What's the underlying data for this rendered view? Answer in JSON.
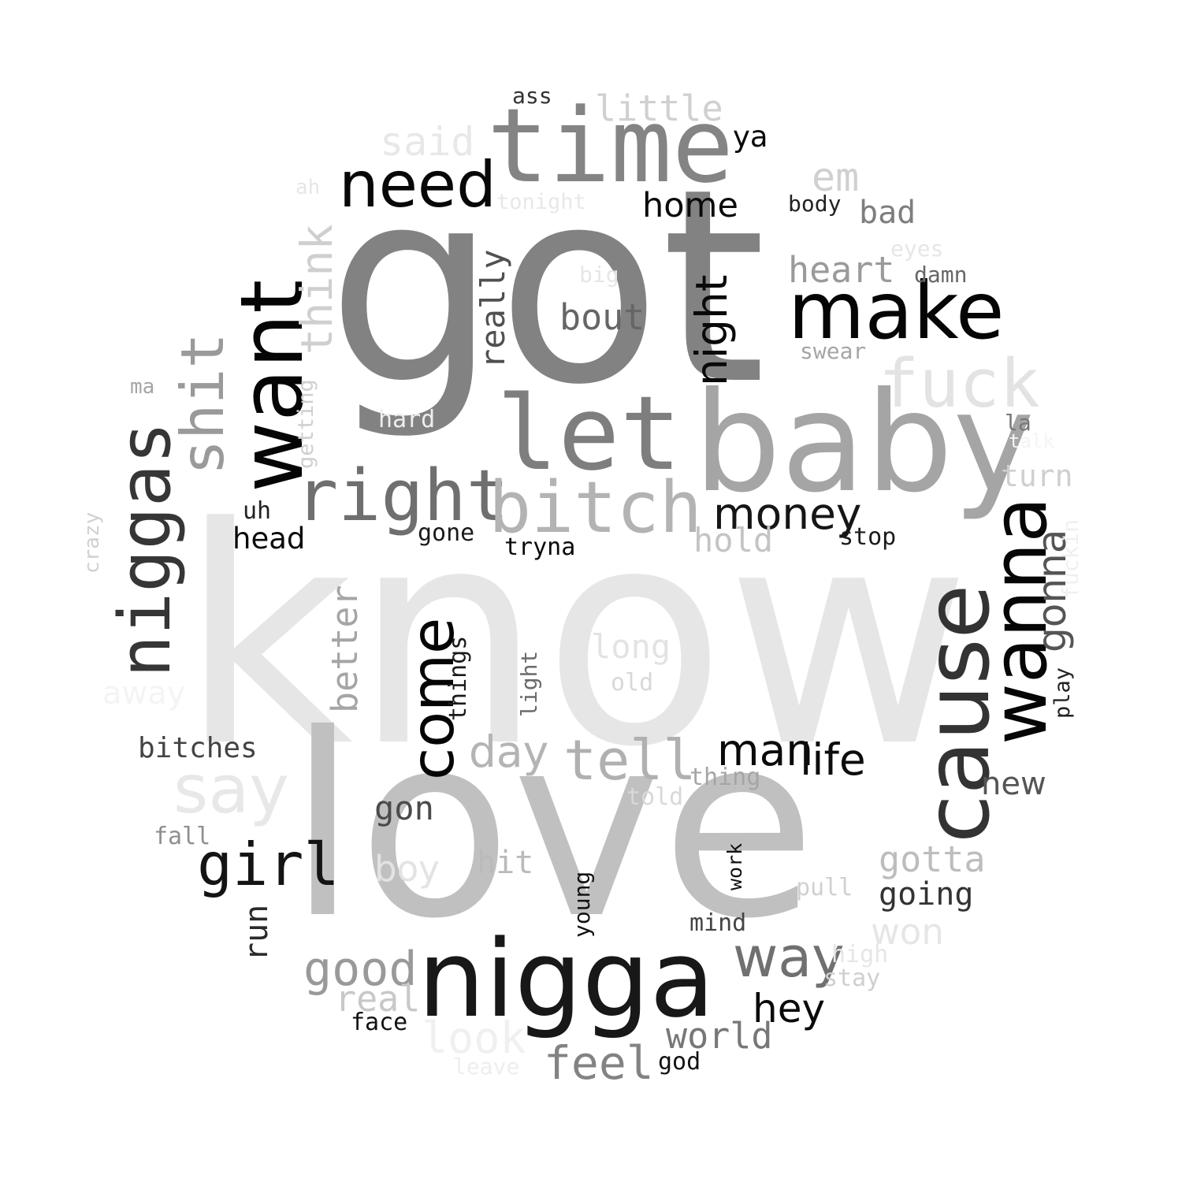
{
  "words": [
    {
      "text": "know",
      "color": "#e6e6e6"
    },
    {
      "text": "got",
      "color": "#828282"
    },
    {
      "text": "love",
      "color": "#c0c0c0"
    },
    {
      "text": "baby",
      "color": "#a5a5a5"
    },
    {
      "text": "nigga",
      "color": "#181818"
    },
    {
      "text": "time",
      "color": "#848484"
    },
    {
      "text": "cause",
      "color": "#333333"
    },
    {
      "text": "want",
      "color": "#050505"
    },
    {
      "text": "let",
      "color": "#7e7e7e"
    },
    {
      "text": "make",
      "color": "#050505"
    },
    {
      "text": "wanna",
      "color": "#060606"
    },
    {
      "text": "right",
      "color": "#6f6f6f"
    },
    {
      "text": "bitch",
      "color": "#b3b3b3"
    },
    {
      "text": "niggas",
      "color": "#363636"
    },
    {
      "text": "need",
      "color": "#080808"
    },
    {
      "text": "fuck",
      "color": "#e3e3e3"
    },
    {
      "text": "say",
      "color": "#e8e8e8"
    },
    {
      "text": "shit",
      "color": "#9a9a9a"
    },
    {
      "text": "come",
      "color": "#050505"
    },
    {
      "text": "girl",
      "color": "#141414"
    },
    {
      "text": "tell",
      "color": "#b0b0b0"
    },
    {
      "text": "way",
      "color": "#707070"
    },
    {
      "text": "money",
      "color": "#161616"
    },
    {
      "text": "good",
      "color": "#999999"
    },
    {
      "text": "feel",
      "color": "#838383"
    },
    {
      "text": "gonna",
      "color": "#555555"
    },
    {
      "text": "think",
      "color": "#cfcfcf"
    },
    {
      "text": "day",
      "color": "#b4b4b4"
    },
    {
      "text": "man",
      "color": "#0a0a0a"
    },
    {
      "text": "life",
      "color": "#0d0d0d"
    },
    {
      "text": "night",
      "color": "#0a0a0a"
    },
    {
      "text": "home",
      "color": "#0a0a0a"
    },
    {
      "text": "little",
      "color": "#d0d0d0"
    },
    {
      "text": "said",
      "color": "#e8e8e8"
    },
    {
      "text": "look",
      "color": "#f0f0f0"
    },
    {
      "text": "world",
      "color": "#777777"
    },
    {
      "text": "hey",
      "color": "#0a0a0a"
    },
    {
      "text": "gotta",
      "color": "#bdbdbd"
    },
    {
      "text": "heart",
      "color": "#9a9a9a"
    },
    {
      "text": "bout",
      "color": "#666666"
    },
    {
      "text": "really",
      "color": "#505050"
    },
    {
      "text": "better",
      "color": "#a5a5a5"
    },
    {
      "text": "em",
      "color": "#d0d0d0"
    },
    {
      "text": "bad",
      "color": "#7e7e7e"
    },
    {
      "text": "real",
      "color": "#c8c8c8"
    },
    {
      "text": "going",
      "color": "#333333"
    },
    {
      "text": "gon",
      "color": "#4a4a4a"
    },
    {
      "text": "hold",
      "color": "#c4c4c4"
    },
    {
      "text": "long",
      "color": "#e3e3e3"
    },
    {
      "text": "won",
      "color": "#e6e6e6"
    },
    {
      "text": "boy",
      "color": "#e3e3e3"
    },
    {
      "text": "hit",
      "color": "#bababa"
    },
    {
      "text": "turn",
      "color": "#cfcfcf"
    },
    {
      "text": "new",
      "color": "#555555"
    },
    {
      "text": "head",
      "color": "#0a0a0a"
    },
    {
      "text": "bitches",
      "color": "#444444"
    },
    {
      "text": "run",
      "color": "#2a2a2a"
    },
    {
      "text": "ya",
      "color": "#0a0a0a"
    },
    {
      "text": "getting",
      "color": "#cfcfcf"
    },
    {
      "text": "tonight",
      "color": "#e8e8e8"
    },
    {
      "text": "away",
      "color": "#f4f4f4"
    },
    {
      "text": "tryna",
      "color": "#0a0a0a"
    },
    {
      "text": "gone",
      "color": "#1a1a1a"
    },
    {
      "text": "stop",
      "color": "#1a1a1a"
    },
    {
      "text": "uh",
      "color": "#222222"
    },
    {
      "text": "things",
      "color": "#1a1a1a"
    },
    {
      "text": "light",
      "color": "#6a6a6a"
    },
    {
      "text": "young",
      "color": "#111111"
    },
    {
      "text": "work",
      "color": "#111111"
    },
    {
      "text": "mind",
      "color": "#444444"
    },
    {
      "text": "face",
      "color": "#111111"
    },
    {
      "text": "god",
      "color": "#111111"
    },
    {
      "text": "play",
      "color": "#222222"
    },
    {
      "text": "thing",
      "color": "#a5a5a5"
    },
    {
      "text": "told",
      "color": "#d8d8d8"
    },
    {
      "text": "old",
      "color": "#d8d8d8"
    },
    {
      "text": "pull",
      "color": "#d0d0d0"
    },
    {
      "text": "high",
      "color": "#e6e6e6"
    },
    {
      "text": "stay",
      "color": "#cfcfcf"
    },
    {
      "text": "fall",
      "color": "#8f8f8f"
    },
    {
      "text": "crazy",
      "color": "#d0d0d0"
    },
    {
      "text": "ma",
      "color": "#a5a5a5"
    },
    {
      "text": "ah",
      "color": "#e6e6e6"
    },
    {
      "text": "big",
      "color": "#e6e6e6"
    },
    {
      "text": "hard",
      "color": "#eeeeee"
    },
    {
      "text": "ass",
      "color": "#333333"
    },
    {
      "text": "body",
      "color": "#222222"
    },
    {
      "text": "eyes",
      "color": "#e6e6e6"
    },
    {
      "text": "damn",
      "color": "#666666"
    },
    {
      "text": "swear",
      "color": "#a5a5a5"
    },
    {
      "text": "la",
      "color": "#777777"
    },
    {
      "text": "fuckin",
      "color": "#f0f0f0"
    },
    {
      "text": "leave",
      "color": "#eeeeee"
    },
    {
      "text": "talk",
      "color": "#f4f4f4"
    }
  ]
}
